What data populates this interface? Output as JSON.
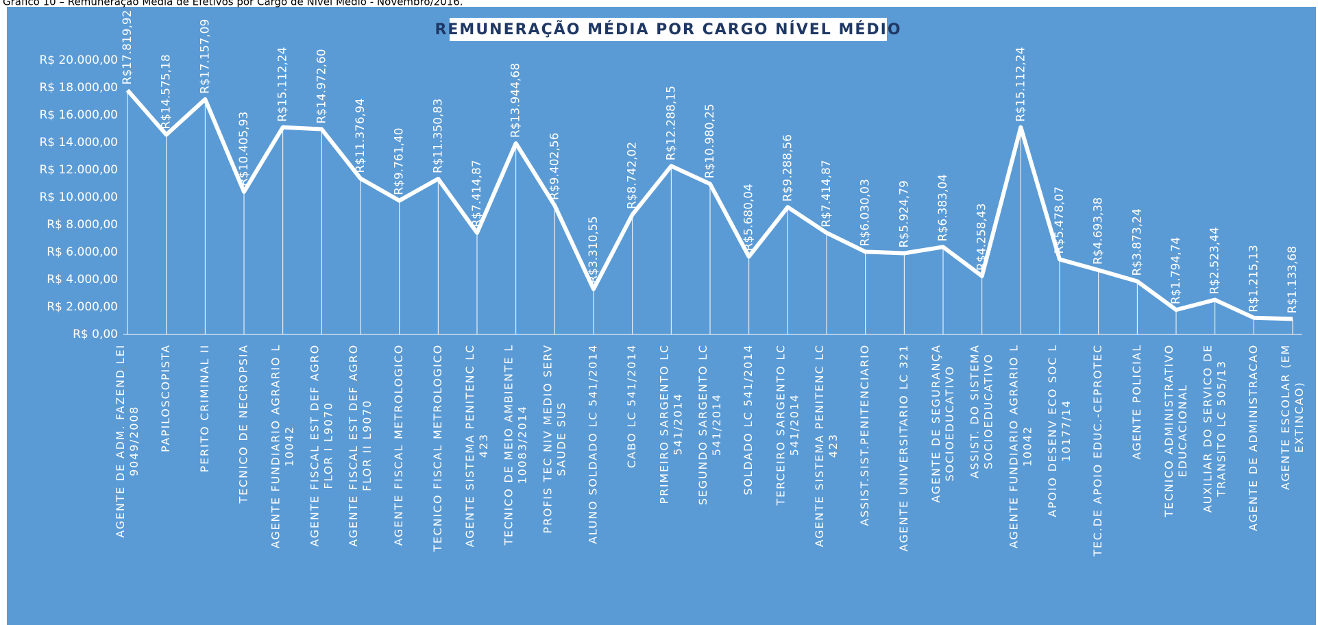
{
  "chart_data": {
    "type": "line",
    "caption": "Gráfico 10 – Remuneração Média de Efetivos por Cargo de Nível Médio - Novembro/2016.",
    "title": "REMUNERAÇÃO MÉDIA POR CARGO NÍVEL MÉDIO",
    "categories": [
      "AGENTE DE ADM. FAZEND LEI 9049/2008",
      "PAPILOSCOPISTA",
      "PERITO CRIMINAL II",
      "TECNICO DE NECROPSIA",
      "AGENTE FUNDIARIO AGRARIO L 10042",
      "AGENTE FISCAL EST DEF AGRO FLOR I L9070",
      "AGENTE FISCAL EST DEF AGRO FLOR II L9070",
      "AGENTE FISCAL METROLOGICO",
      "TECNICO FISCAL METROLOGICO",
      "AGENTE SISTEMA PENITENC LC 423",
      "TECNICO DE MEIO AMBIENTE L 10083/2014",
      "PROFIS TEC NIV MEDIO SERV SAUDE SUS",
      "ALUNO SOLDADO LC 541/2014",
      "CABO LC 541/2014",
      "PRIMEIRO SARGENTO LC 541/2014",
      "SEGUNDO SARGENTO LC 541/2014",
      "SOLDADO LC 541/2014",
      "TERCEIRO SARGENTO LC 541/2014",
      "AGENTE SISTEMA PENITENC LC 423",
      "ASSIST.SIST.PENITENCIARIO",
      "AGENTE UNIVERSITARIO LC 321",
      "AGENTE DE SEGURANÇA SOCIOEDUCATIVO",
      "ASSIST. DO SISTEMA SOCIOEDUCATIVO",
      "AGENTE FUNDIARIO AGRARIO L 10042",
      "APOIO DESENV ECO SOC L 10177/14",
      "TEC.DE APOIO EDUC.-CEPROTEC",
      "AGENTE POLICIAL",
      "TECNICO ADMINISTRATIVO EDUCACIONAL",
      "AUXILIAR DO SERVICO DE TRANSITO LC 505/13",
      "AGENTE DE ADMINISTRACAO",
      "AGENTE ESCOLAR (EM EXTINCAO)"
    ],
    "values": [
      17819.92,
      14575.18,
      17157.09,
      10405.93,
      15112.24,
      14972.6,
      11376.94,
      9761.4,
      11350.83,
      7414.87,
      13944.68,
      9402.56,
      3310.55,
      8742.02,
      12288.15,
      10980.25,
      5680.04,
      9288.56,
      7414.87,
      6030.03,
      5924.79,
      6383.04,
      4258.43,
      15112.24,
      5478.07,
      4693.38,
      3873.24,
      1794.74,
      2523.44,
      1215.13,
      1133.68
    ],
    "value_labels": [
      "R$17.819,92",
      "R$14.575,18",
      "R$17.157,09",
      "R$10.405,93",
      "R$15.112,24",
      "R$14.972,60",
      "R$11.376,94",
      "R$9.761,40",
      "R$11.350,83",
      "R$7.414,87",
      "R$13.944,68",
      "R$9.402,56",
      "R$3.310,55",
      "R$8.742,02",
      "R$12.288,15",
      "R$10.980,25",
      "R$5.680,04",
      "R$9.288,56",
      "R$7.414,87",
      "R$6.030,03",
      "R$5.924,79",
      "R$6.383,04",
      "R$4.258,43",
      "R$15.112,24",
      "R$5.478,07",
      "R$4.693,38",
      "R$3.873,24",
      "R$1.794,74",
      "R$2.523,44",
      "R$1.215,13",
      "R$1.133,68"
    ],
    "color": "#ffffff",
    "background": "#5b9bd5",
    "ylim": [
      0,
      20000
    ],
    "yticks": [
      {
        "value": 0,
        "label": "R$ 0,00"
      },
      {
        "value": 2000,
        "label": "R$ 2.000,00"
      },
      {
        "value": 4000,
        "label": "R$ 4.000,00"
      },
      {
        "value": 6000,
        "label": "R$ 6.000,00"
      },
      {
        "value": 8000,
        "label": "R$ 8.000,00"
      },
      {
        "value": 10000,
        "label": "R$ 10.000,00"
      },
      {
        "value": 12000,
        "label": "R$ 12.000,00"
      },
      {
        "value": 14000,
        "label": "R$ 14.000,00"
      },
      {
        "value": 16000,
        "label": "R$ 16.000,00"
      },
      {
        "value": 18000,
        "label": "R$ 18.000,00"
      },
      {
        "value": 20000,
        "label": "R$ 20.000,00"
      }
    ],
    "grid": false
  }
}
